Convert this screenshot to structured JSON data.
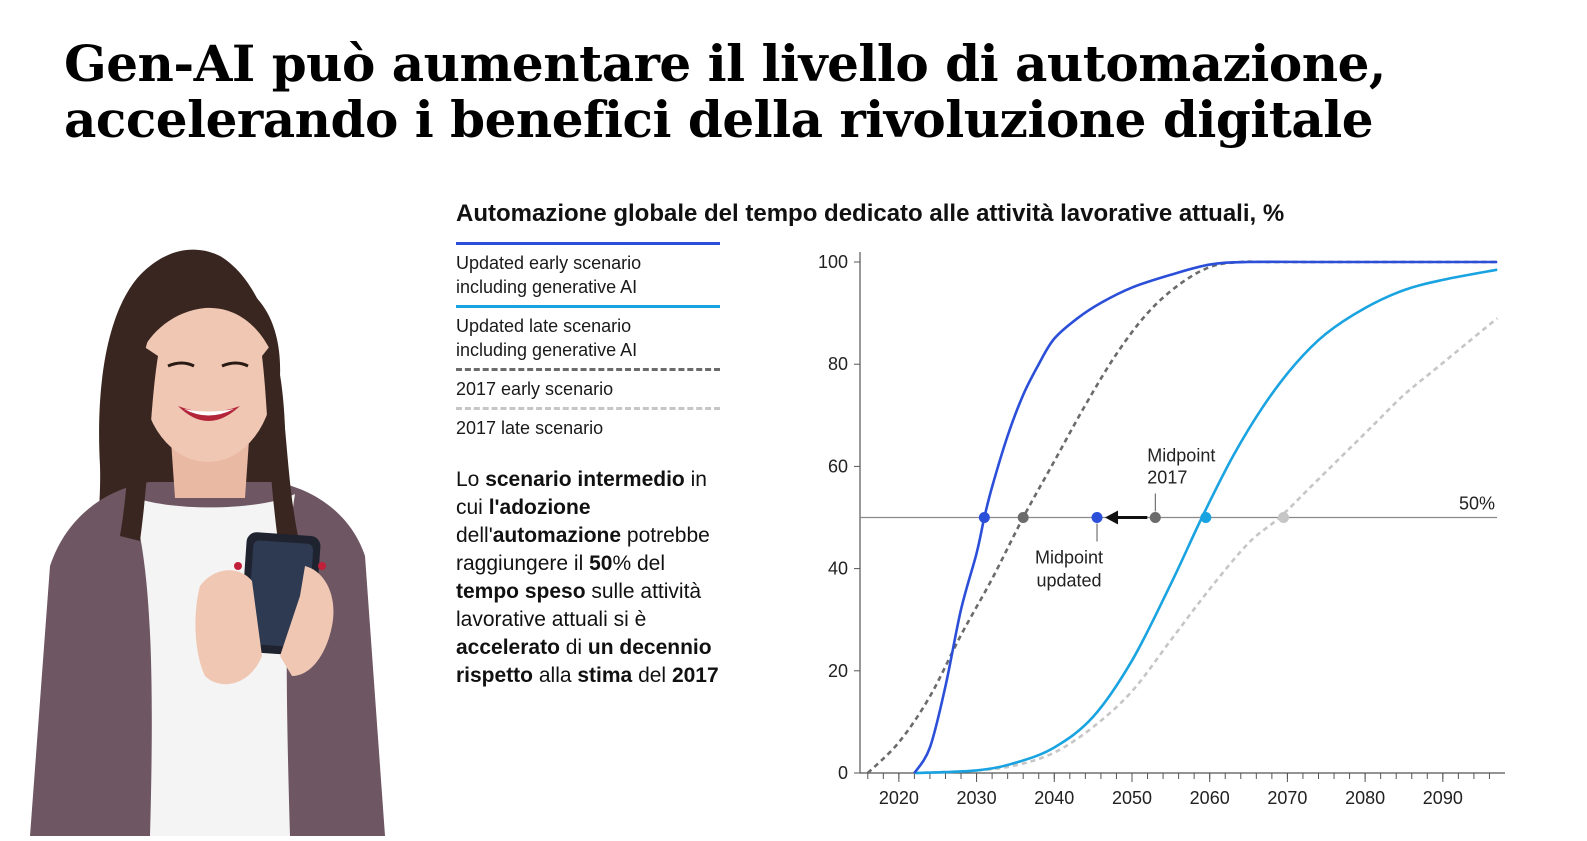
{
  "slide": {
    "title_line1": "Gen-AI può aumentare il livello di automazione,",
    "title_line2": "accelerando i benefici della rivoluzione digitale"
  },
  "description": {
    "segments": [
      {
        "t": "Lo ",
        "b": false
      },
      {
        "t": "scenario intermedio",
        "b": true
      },
      {
        "t": " in cui ",
        "b": false
      },
      {
        "t": "l'adozione",
        "b": true
      },
      {
        "t": " dell'",
        "b": false
      },
      {
        "t": "automazione",
        "b": true
      },
      {
        "t": " potrebbe raggiungere il ",
        "b": false
      },
      {
        "t": "50",
        "b": true
      },
      {
        "t": "% del ",
        "b": false
      },
      {
        "t": "tempo speso",
        "b": true
      },
      {
        "t": " sulle attività lavorative attuali si è ",
        "b": false
      },
      {
        "t": "accelerato",
        "b": true
      },
      {
        "t": " di ",
        "b": false
      },
      {
        "t": "un decennio rispetto",
        "b": true
      },
      {
        "t": " alla ",
        "b": false
      },
      {
        "t": "stima",
        "b": true
      },
      {
        "t": " del ",
        "b": false
      },
      {
        "t": "2017",
        "b": true
      }
    ]
  },
  "colors": {
    "updated_early": "#2b4fd8",
    "updated_late": "#19a3e0",
    "early_2017": "#6b6b6b",
    "late_2017": "#c6c6c6",
    "reference_line": "#8a8a8a",
    "arrow": "#111111"
  },
  "chart_data": {
    "type": "line",
    "title": "Automazione globale del tempo dedicato alle attività lavorative attuali, %",
    "xlabel": "",
    "ylabel": "",
    "xlim": [
      2015,
      2098
    ],
    "ylim": [
      0,
      100
    ],
    "x_ticks": [
      2020,
      2030,
      2040,
      2050,
      2060,
      2070,
      2080,
      2090
    ],
    "y_ticks": [
      0,
      20,
      40,
      60,
      80,
      100
    ],
    "grid": false,
    "legend_position": "left",
    "series": [
      {
        "name": "Updated early scenario including generative AI",
        "style": "solid",
        "x": [
          2022,
          2024,
          2026,
          2028,
          2030,
          2031,
          2032,
          2034,
          2036,
          2038,
          2040,
          2043,
          2046,
          2050,
          2055,
          2060,
          2065,
          2075,
          2097
        ],
        "y": [
          0,
          5,
          17,
          32,
          43,
          50,
          56,
          66,
          74,
          80,
          85,
          89,
          92,
          95,
          97.5,
          99.5,
          100,
          100,
          100
        ]
      },
      {
        "name": "Updated late scenario including generative AI",
        "style": "solid",
        "x": [
          2022,
          2030,
          2035,
          2040,
          2045,
          2050,
          2055,
          2059,
          2063,
          2067,
          2071,
          2075,
          2080,
          2085,
          2090,
          2097
        ],
        "y": [
          0,
          0.5,
          2,
          5,
          11,
          22,
          37,
          50,
          62,
          72,
          80,
          86,
          91,
          94.5,
          96.5,
          98.5
        ]
      },
      {
        "name": "2017 early scenario",
        "style": "dashed",
        "x": [
          2016,
          2020,
          2024,
          2028,
          2032,
          2036,
          2040,
          2044,
          2048,
          2052,
          2056,
          2060,
          2064,
          2070,
          2097
        ],
        "y": [
          0,
          6,
          15,
          27,
          38,
          50,
          61,
          72,
          82,
          90,
          95.5,
          99,
          100,
          100,
          100
        ]
      },
      {
        "name": "2017 late scenario",
        "style": "dashed",
        "x": [
          2022,
          2030,
          2035,
          2040,
          2045,
          2050,
          2055,
          2060,
          2065,
          2069,
          2073,
          2077,
          2081,
          2085,
          2089,
          2093,
          2097
        ],
        "y": [
          0,
          0.5,
          1.5,
          4,
          9,
          16,
          26,
          36,
          45,
          50,
          56,
          62,
          68,
          74,
          79,
          84,
          89
        ]
      }
    ],
    "reference_line": {
      "y": 50,
      "label": "50%"
    },
    "midpoints": [
      {
        "x": 2031,
        "series": 0
      },
      {
        "x": 2036,
        "series": 2
      },
      {
        "x": 2045.5,
        "series": 0,
        "label_line1": "Midpoint",
        "label_line2": "updated"
      },
      {
        "x": 2053,
        "series": 2,
        "label_line1": "Midpoint",
        "label_line2": "2017"
      },
      {
        "x": 2059.5,
        "series": 1
      },
      {
        "x": 2069.5,
        "series": 3
      }
    ],
    "arrow": {
      "from_x": 2053,
      "to_x": 2045.5,
      "y": 50
    }
  }
}
